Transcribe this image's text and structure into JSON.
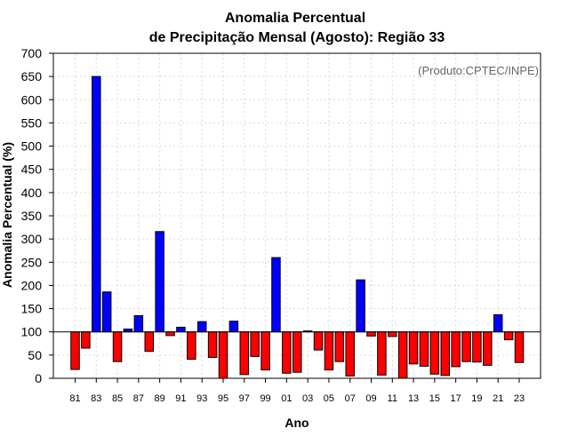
{
  "chart_data": {
    "type": "bar",
    "title_line1": "Anomalia Percentual",
    "title_line2": "de Precipitação Mensal (Agosto): Região 33",
    "xlabel": "Ano",
    "ylabel": "Anomalia Percentual (%)",
    "credit": "(Produto:CPTEC/INPE)",
    "ylim": [
      0,
      700
    ],
    "ystep": 50,
    "baseline": 100,
    "yticks": [
      "0",
      "50",
      "100",
      "150",
      "200",
      "250",
      "300",
      "350",
      "400",
      "450",
      "500",
      "550",
      "600",
      "650",
      "700"
    ],
    "xtick_labels": [
      "81",
      "83",
      "85",
      "87",
      "89",
      "91",
      "93",
      "95",
      "97",
      "99",
      "01",
      "03",
      "05",
      "07",
      "09",
      "11",
      "13",
      "15",
      "17",
      "19",
      "21",
      "23"
    ],
    "categories": [
      "81",
      "82",
      "83",
      "84",
      "85",
      "86",
      "87",
      "88",
      "89",
      "90",
      "91",
      "92",
      "93",
      "94",
      "95",
      "96",
      "97",
      "98",
      "99",
      "00",
      "01",
      "02",
      "03",
      "04",
      "05",
      "06",
      "07",
      "08",
      "09",
      "10",
      "11",
      "12",
      "13",
      "14",
      "15",
      "16",
      "17",
      "18",
      "19",
      "20",
      "21",
      "22",
      "23"
    ],
    "values": [
      19,
      65,
      650,
      186,
      36,
      106,
      135,
      58,
      316,
      92,
      110,
      41,
      122,
      45,
      0,
      123,
      8,
      47,
      18,
      260,
      11,
      13,
      102,
      61,
      18,
      36,
      5,
      212,
      91,
      7,
      90,
      0,
      31,
      26,
      9,
      6,
      25,
      36,
      35,
      28,
      137,
      83,
      34
    ],
    "colors": {
      "above": "#0000ff",
      "below": "#ff0000"
    }
  }
}
